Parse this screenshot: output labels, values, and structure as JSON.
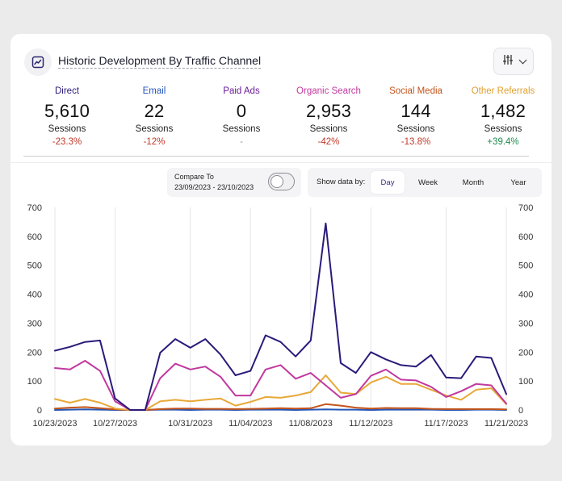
{
  "header": {
    "title": "Historic Development By Traffic Channel",
    "icon": "chart-line-icon",
    "filter_icon": "sliders-icon"
  },
  "stats": [
    {
      "channel": "Direct",
      "value": "5,610",
      "label": "Sessions",
      "change": "-23.3%",
      "channel_color": "#2b1a7a",
      "change_color": "#c0392b"
    },
    {
      "channel": "Email",
      "value": "22",
      "label": "Sessions",
      "change": "-12%",
      "channel_color": "#2457b8",
      "change_color": "#c0392b"
    },
    {
      "channel": "Paid Ads",
      "value": "0",
      "label": "Sessions",
      "change": "-",
      "channel_color": "#6a1b9a",
      "change_color": "#9a9aa0"
    },
    {
      "channel": "Organic Search",
      "value": "2,953",
      "label": "Sessions",
      "change": "-42%",
      "channel_color": "#c0399f",
      "change_color": "#c0392b"
    },
    {
      "channel": "Social Media",
      "value": "144",
      "label": "Sessions",
      "change": "-13.8%",
      "channel_color": "#c4541a",
      "change_color": "#c0392b"
    },
    {
      "channel": "Other Referrals",
      "value": "1,482",
      "label": "Sessions",
      "change": "+39.4%",
      "channel_color": "#e0a030",
      "change_color": "#1f8a4c"
    }
  ],
  "controls": {
    "compare_label": "Compare To",
    "compare_range": "23/09/2023 - 23/10/2023",
    "compare_enabled": false,
    "show_by_label": "Show data by:",
    "periods": [
      "Day",
      "Week",
      "Month",
      "Year"
    ],
    "active_period": "Day"
  },
  "chart_data": {
    "type": "line",
    "ylim": [
      0,
      700
    ],
    "y_ticks": [
      0,
      100,
      200,
      300,
      400,
      500,
      600,
      700
    ],
    "x_tick_labels": [
      "10/23/2023",
      "10/27/2023",
      "10/31/2023",
      "11/04/2023",
      "11/08/2023",
      "11/12/2023",
      "11/17/2023",
      "11/21/2023"
    ],
    "x_tick_index": [
      0,
      4,
      9,
      13,
      17,
      21,
      26,
      30
    ],
    "grid": "vertical",
    "n_points": 31,
    "series": [
      {
        "name": "Direct",
        "color": "#2b1a7a",
        "values": [
          205,
          218,
          235,
          240,
          40,
          0,
          0,
          198,
          245,
          215,
          245,
          192,
          120,
          135,
          258,
          235,
          185,
          240,
          645,
          162,
          128,
          200,
          175,
          155,
          150,
          190,
          112,
          110,
          185,
          180,
          55
        ]
      },
      {
        "name": "Organic Search",
        "color": "#c0399f",
        "values": [
          145,
          140,
          170,
          135,
          30,
          0,
          0,
          110,
          160,
          140,
          150,
          115,
          50,
          50,
          140,
          155,
          108,
          128,
          85,
          42,
          55,
          118,
          140,
          105,
          102,
          80,
          45,
          65,
          90,
          85,
          22
        ]
      },
      {
        "name": "Other Referrals",
        "color": "#e8a838",
        "values": [
          38,
          25,
          38,
          25,
          5,
          0,
          0,
          30,
          35,
          30,
          35,
          40,
          15,
          28,
          45,
          42,
          50,
          62,
          120,
          60,
          55,
          95,
          115,
          90,
          90,
          70,
          50,
          35,
          70,
          75,
          20
        ]
      },
      {
        "name": "Social Media",
        "color": "#c4541a",
        "values": [
          5,
          8,
          10,
          6,
          2,
          0,
          0,
          3,
          5,
          5,
          4,
          4,
          3,
          4,
          5,
          6,
          5,
          6,
          20,
          15,
          8,
          5,
          7,
          6,
          6,
          4,
          3,
          3,
          3,
          3,
          2
        ]
      },
      {
        "name": "Email",
        "color": "#2457b8",
        "values": [
          0,
          1,
          2,
          1,
          0,
          0,
          0,
          1,
          1,
          0,
          1,
          1,
          0,
          1,
          1,
          1,
          0,
          1,
          2,
          1,
          1,
          0,
          1,
          1,
          1,
          1,
          0,
          0,
          1,
          1,
          0
        ]
      }
    ]
  }
}
